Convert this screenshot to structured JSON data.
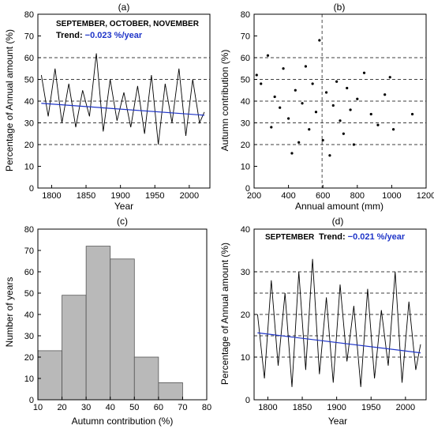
{
  "chart_data": [
    {
      "type": "line",
      "panel": "(a)",
      "annotation": "SEPTEMBER, OCTOBER, NOVEMBER",
      "trend_label": "Trend: ",
      "trend_value": "−0.023 %/year",
      "xlabel": "Year",
      "ylabel": "Percentage of Annual amount (%)",
      "xlim": [
        1780,
        2030
      ],
      "ylim": [
        0,
        80
      ],
      "xticks": [
        1800,
        1850,
        1900,
        1950,
        2000
      ],
      "yticks": [
        0,
        10,
        20,
        30,
        40,
        50,
        60,
        70,
        80
      ],
      "grid_y_dashed": [
        20,
        30,
        40,
        50,
        60
      ],
      "series": [
        {
          "x": [
            1785,
            1795,
            1805,
            1815,
            1825,
            1835,
            1845,
            1855,
            1865,
            1875,
            1885,
            1895,
            1905,
            1915,
            1925,
            1935,
            1945,
            1955,
            1965,
            1975,
            1985,
            1995,
            2005,
            2015,
            2022
          ],
          "y": [
            52,
            33,
            55,
            30,
            48,
            28,
            45,
            33,
            62,
            26,
            50,
            31,
            44,
            28,
            47,
            25,
            52,
            20,
            48,
            30,
            55,
            24,
            50,
            30,
            35
          ]
        }
      ],
      "trend": {
        "x": [
          1785,
          2022
        ],
        "y": [
          39,
          33.5
        ],
        "color": "#1f35c8"
      }
    },
    {
      "type": "scatter",
      "panel": "(b)",
      "xlabel": "Annual amount (mm)",
      "ylabel": "Autumn contribution (%)",
      "xlim": [
        200,
        1200
      ],
      "ylim": [
        0,
        80
      ],
      "xticks": [
        200,
        400,
        600,
        800,
        1000,
        1200
      ],
      "yticks": [
        0,
        10,
        20,
        30,
        40,
        50,
        60,
        70,
        80
      ],
      "grid_y_dashed": [
        20,
        30,
        40,
        50,
        60
      ],
      "vline_x": 595,
      "x": [
        215,
        240,
        280,
        300,
        320,
        350,
        370,
        400,
        420,
        440,
        460,
        480,
        500,
        520,
        540,
        560,
        580,
        600,
        620,
        640,
        660,
        680,
        700,
        720,
        740,
        760,
        780,
        800,
        840,
        880,
        920,
        960,
        990,
        1010,
        1120
      ],
      "y": [
        52,
        48,
        61,
        28,
        42,
        37,
        55,
        32,
        16,
        45,
        21,
        39,
        56,
        27,
        48,
        35,
        68,
        22,
        44,
        15,
        38,
        49,
        31,
        25,
        46,
        36,
        20,
        41,
        53,
        34,
        29,
        43,
        51,
        27,
        34
      ]
    },
    {
      "type": "bar",
      "panel": "(c)",
      "xlabel": "Autumn contribution (%)",
      "ylabel": "Number of years",
      "xlim": [
        10,
        80
      ],
      "ylim": [
        0,
        80
      ],
      "xticks": [
        10,
        20,
        30,
        40,
        50,
        60,
        70,
        80
      ],
      "yticks": [
        0,
        10,
        20,
        30,
        40,
        50,
        60,
        70,
        80
      ],
      "bins": [
        [
          10,
          20
        ],
        [
          20,
          30
        ],
        [
          30,
          40
        ],
        [
          40,
          50
        ],
        [
          50,
          60
        ],
        [
          60,
          70
        ]
      ],
      "values": [
        23,
        49,
        72,
        66,
        20,
        8
      ]
    },
    {
      "type": "line",
      "panel": "(d)",
      "annotation": "SEPTEMBER",
      "trend_label": "Trend: ",
      "trend_value": "−0.021 %/year",
      "xlabel": "Year",
      "ylabel": "Percentage of Annual amount (%)",
      "xlim": [
        1780,
        2030
      ],
      "ylim": [
        0,
        40
      ],
      "xticks": [
        1800,
        1850,
        1900,
        1950,
        2000
      ],
      "yticks": [
        0,
        10,
        20,
        30,
        40
      ],
      "grid_y_dashed": [
        10,
        15,
        20,
        25,
        30
      ],
      "series": [
        {
          "x": [
            1785,
            1795,
            1805,
            1815,
            1825,
            1835,
            1845,
            1855,
            1865,
            1875,
            1885,
            1895,
            1905,
            1915,
            1925,
            1935,
            1945,
            1955,
            1965,
            1975,
            1985,
            1995,
            2005,
            2015,
            2022
          ],
          "y": [
            20,
            5,
            28,
            8,
            25,
            3,
            30,
            7,
            33,
            6,
            24,
            4,
            27,
            9,
            22,
            3,
            26,
            5,
            21,
            8,
            30,
            4,
            23,
            7,
            13
          ]
        }
      ],
      "trend": {
        "x": [
          1785,
          2022
        ],
        "y": [
          15.7,
          11
        ],
        "color": "#1f35c8"
      }
    }
  ]
}
